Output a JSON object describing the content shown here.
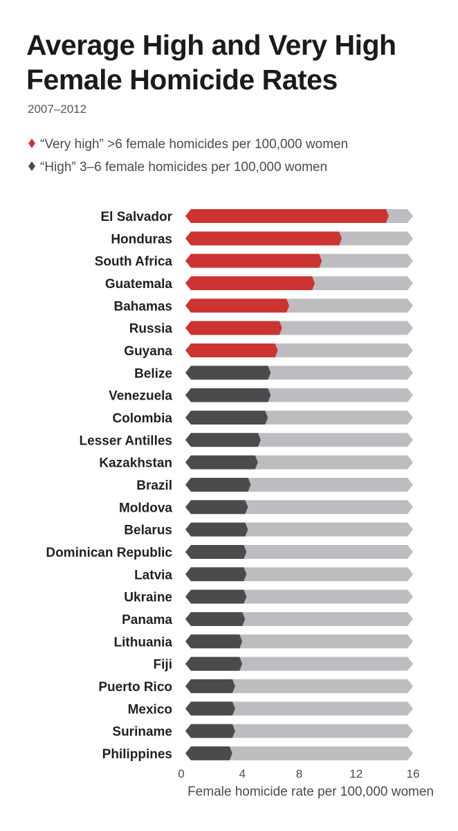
{
  "colors": {
    "very_high": "#cc3333",
    "high": "#4d4a4d",
    "track": "#bebcc0",
    "text": "#231f20"
  },
  "legend": {
    "very_high": "“Very high” >6 female homicides per 100,000 women",
    "high": "“High” 3–6 female homicides per 100,000 women"
  },
  "chart_data": {
    "type": "bar",
    "orientation": "horizontal",
    "title": "Average High and Very High Female Homicide Rates",
    "subtitle": "2007–2012",
    "xlabel": "Female homicide rate per 100,000 women",
    "ylabel": "",
    "xlim": [
      0,
      16
    ],
    "xticks": [
      0,
      4,
      8,
      12,
      16
    ],
    "categories": [
      "El Salvador",
      "Honduras",
      "South Africa",
      "Guatemala",
      "Bahamas",
      "Russia",
      "Guyana",
      "Belize",
      "Venezuela",
      "Colombia",
      "Lesser Antilles",
      "Kazakhstan",
      "Brazil",
      "Moldova",
      "Belarus",
      "Dominican Republic",
      "Latvia",
      "Ukraine",
      "Panama",
      "Lithuania",
      "Fiji",
      "Puerto Rico",
      "Mexico",
      "Suriname",
      "Philippines"
    ],
    "values": [
      14.1,
      10.8,
      9.4,
      8.9,
      7.1,
      6.6,
      6.3,
      5.8,
      5.8,
      5.6,
      5.1,
      4.9,
      4.4,
      4.2,
      4.2,
      4.1,
      4.1,
      4.1,
      4.0,
      3.8,
      3.8,
      3.3,
      3.3,
      3.3,
      3.1
    ],
    "categories_by_group": {
      "very_high": 7,
      "high": 18
    },
    "grid": false,
    "legend": "top-left"
  }
}
